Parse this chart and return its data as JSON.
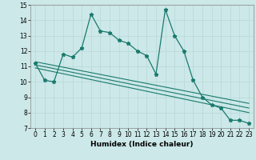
{
  "title": "",
  "xlabel": "Humidex (Indice chaleur)",
  "ylabel": "",
  "bg_color": "#cce8e8",
  "line_color": "#1a7a6e",
  "grid_color": "#b8d8d8",
  "x": [
    0,
    1,
    2,
    3,
    4,
    5,
    6,
    7,
    8,
    9,
    10,
    11,
    12,
    13,
    14,
    15,
    16,
    17,
    18,
    19,
    20,
    21,
    22,
    23
  ],
  "y_main": [
    11.2,
    10.1,
    10.0,
    11.8,
    11.6,
    12.2,
    14.4,
    13.3,
    13.2,
    12.7,
    12.5,
    12.0,
    11.7,
    10.5,
    14.7,
    13.0,
    12.0,
    10.1,
    9.0,
    8.5,
    8.3,
    7.5,
    7.5,
    7.3
  ],
  "trend_lines": [
    {
      "x0": 0,
      "x1": 23,
      "y0": 11.3,
      "y1": 8.6
    },
    {
      "x0": 0,
      "x1": 23,
      "y0": 11.1,
      "y1": 8.3
    },
    {
      "x0": 0,
      "x1": 23,
      "y0": 10.9,
      "y1": 8.0
    }
  ],
  "xlim": [
    -0.5,
    23.5
  ],
  "ylim": [
    7,
    15
  ],
  "yticks": [
    7,
    8,
    9,
    10,
    11,
    12,
    13,
    14,
    15
  ],
  "xticks": [
    0,
    1,
    2,
    3,
    4,
    5,
    6,
    7,
    8,
    9,
    10,
    11,
    12,
    13,
    14,
    15,
    16,
    17,
    18,
    19,
    20,
    21,
    22,
    23
  ],
  "label_fontsize": 6.5,
  "tick_fontsize": 5.5
}
